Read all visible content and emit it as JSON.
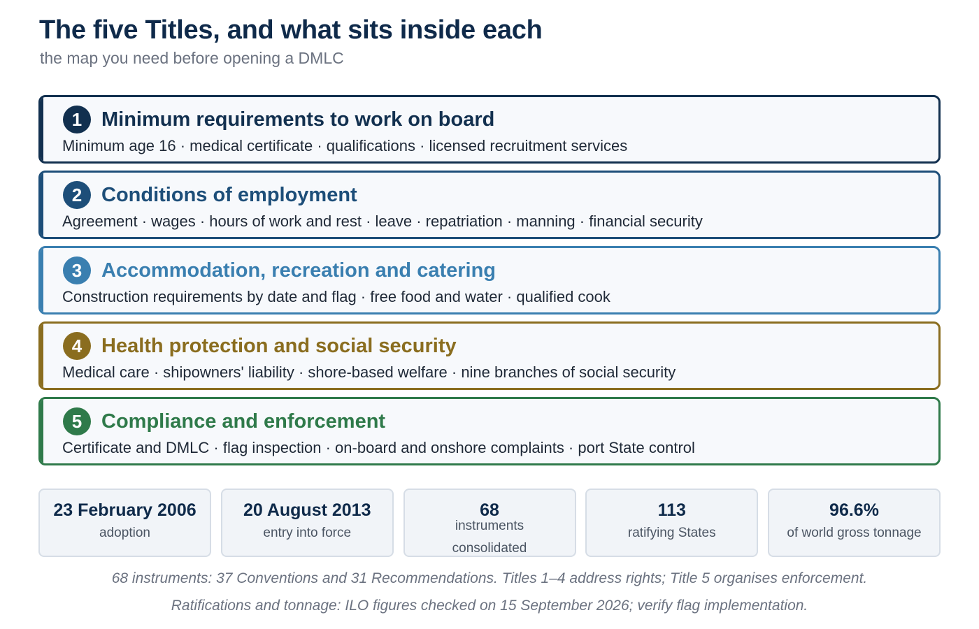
{
  "header": {
    "title": "The five Titles, and what sits inside each",
    "subtitle": "the map you need before opening a DMLC"
  },
  "titles": [
    {
      "number": "1",
      "name": "Minimum requirements to work on board",
      "items": "Minimum age 16 · medical certificate · qualifications · licensed recruitment services",
      "color": "#12304f"
    },
    {
      "number": "2",
      "name": "Conditions of employment",
      "items": "Agreement · wages · hours of work and rest · leave · repatriation · manning · financial security",
      "color": "#1d4e79"
    },
    {
      "number": "3",
      "name": "Accommodation, recreation and catering",
      "items": "Construction requirements by date and flag · free food and water · qualified cook",
      "color": "#3a7fb0"
    },
    {
      "number": "4",
      "name": "Health protection and social security",
      "items": "Medical care · shipowners' liability · shore-based welfare · nine branches of social security",
      "color": "#8a6d1f"
    },
    {
      "number": "5",
      "name": "Compliance and enforcement",
      "items": "Certificate and DMLC · flag inspection · on-board and onshore complaints · port State control",
      "color": "#2f7a4a"
    }
  ],
  "stats": [
    {
      "value": "23 February 2006",
      "label": "adoption"
    },
    {
      "value": "20 August 2013",
      "label": "entry into force"
    },
    {
      "value": "68",
      "label": "instruments consolidated"
    },
    {
      "value": "113",
      "label": "ratifying States"
    },
    {
      "value": "96.6%",
      "label": "of world gross tonnage"
    }
  ],
  "notes": {
    "line1": "68 instruments: 37 Conventions and 31 Recommendations. Titles 1–4 address rights; Title 5 organises enforcement.",
    "line2": "Ratifications and tonnage: ILO figures checked on 15 September 2026; verify flag implementation."
  }
}
